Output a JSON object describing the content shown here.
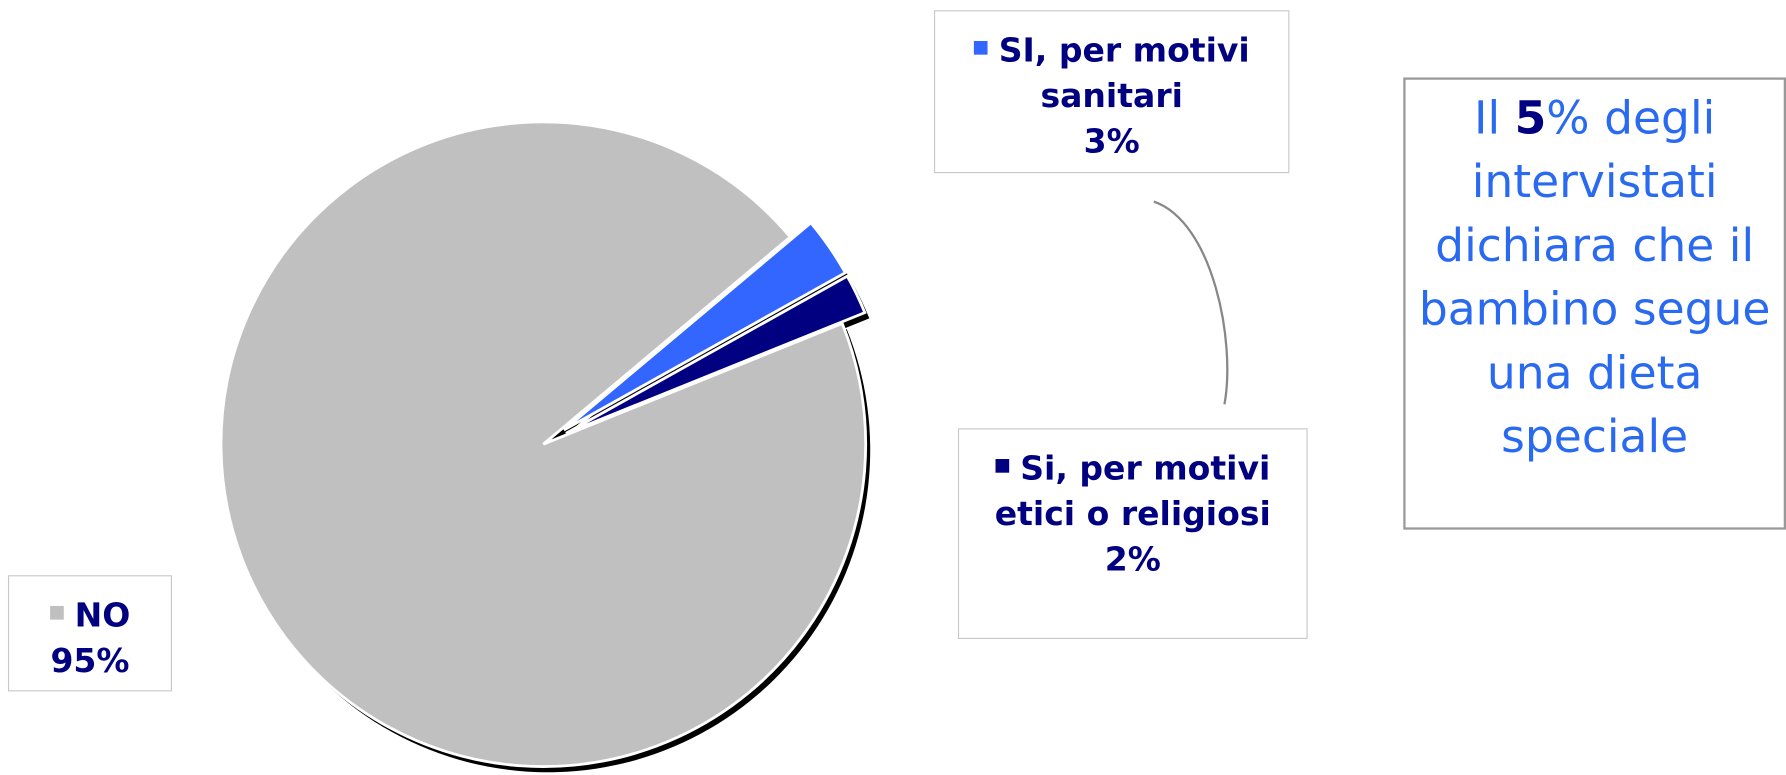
{
  "chart_data": {
    "type": "pie",
    "categories": [
      "SI, per motivi sanitari",
      "Si, per motivi etici o religiosi",
      "NO"
    ],
    "values": [
      3,
      2,
      95
    ],
    "value_labels": [
      "3%",
      "2%",
      "95%"
    ],
    "colors": [
      "#3366ff",
      "#000080",
      "#c0c0c0"
    ],
    "annotation": [
      "Il ",
      "5",
      "% degli intervistati dichiara che il bambino segue una dieta speciale"
    ]
  }
}
